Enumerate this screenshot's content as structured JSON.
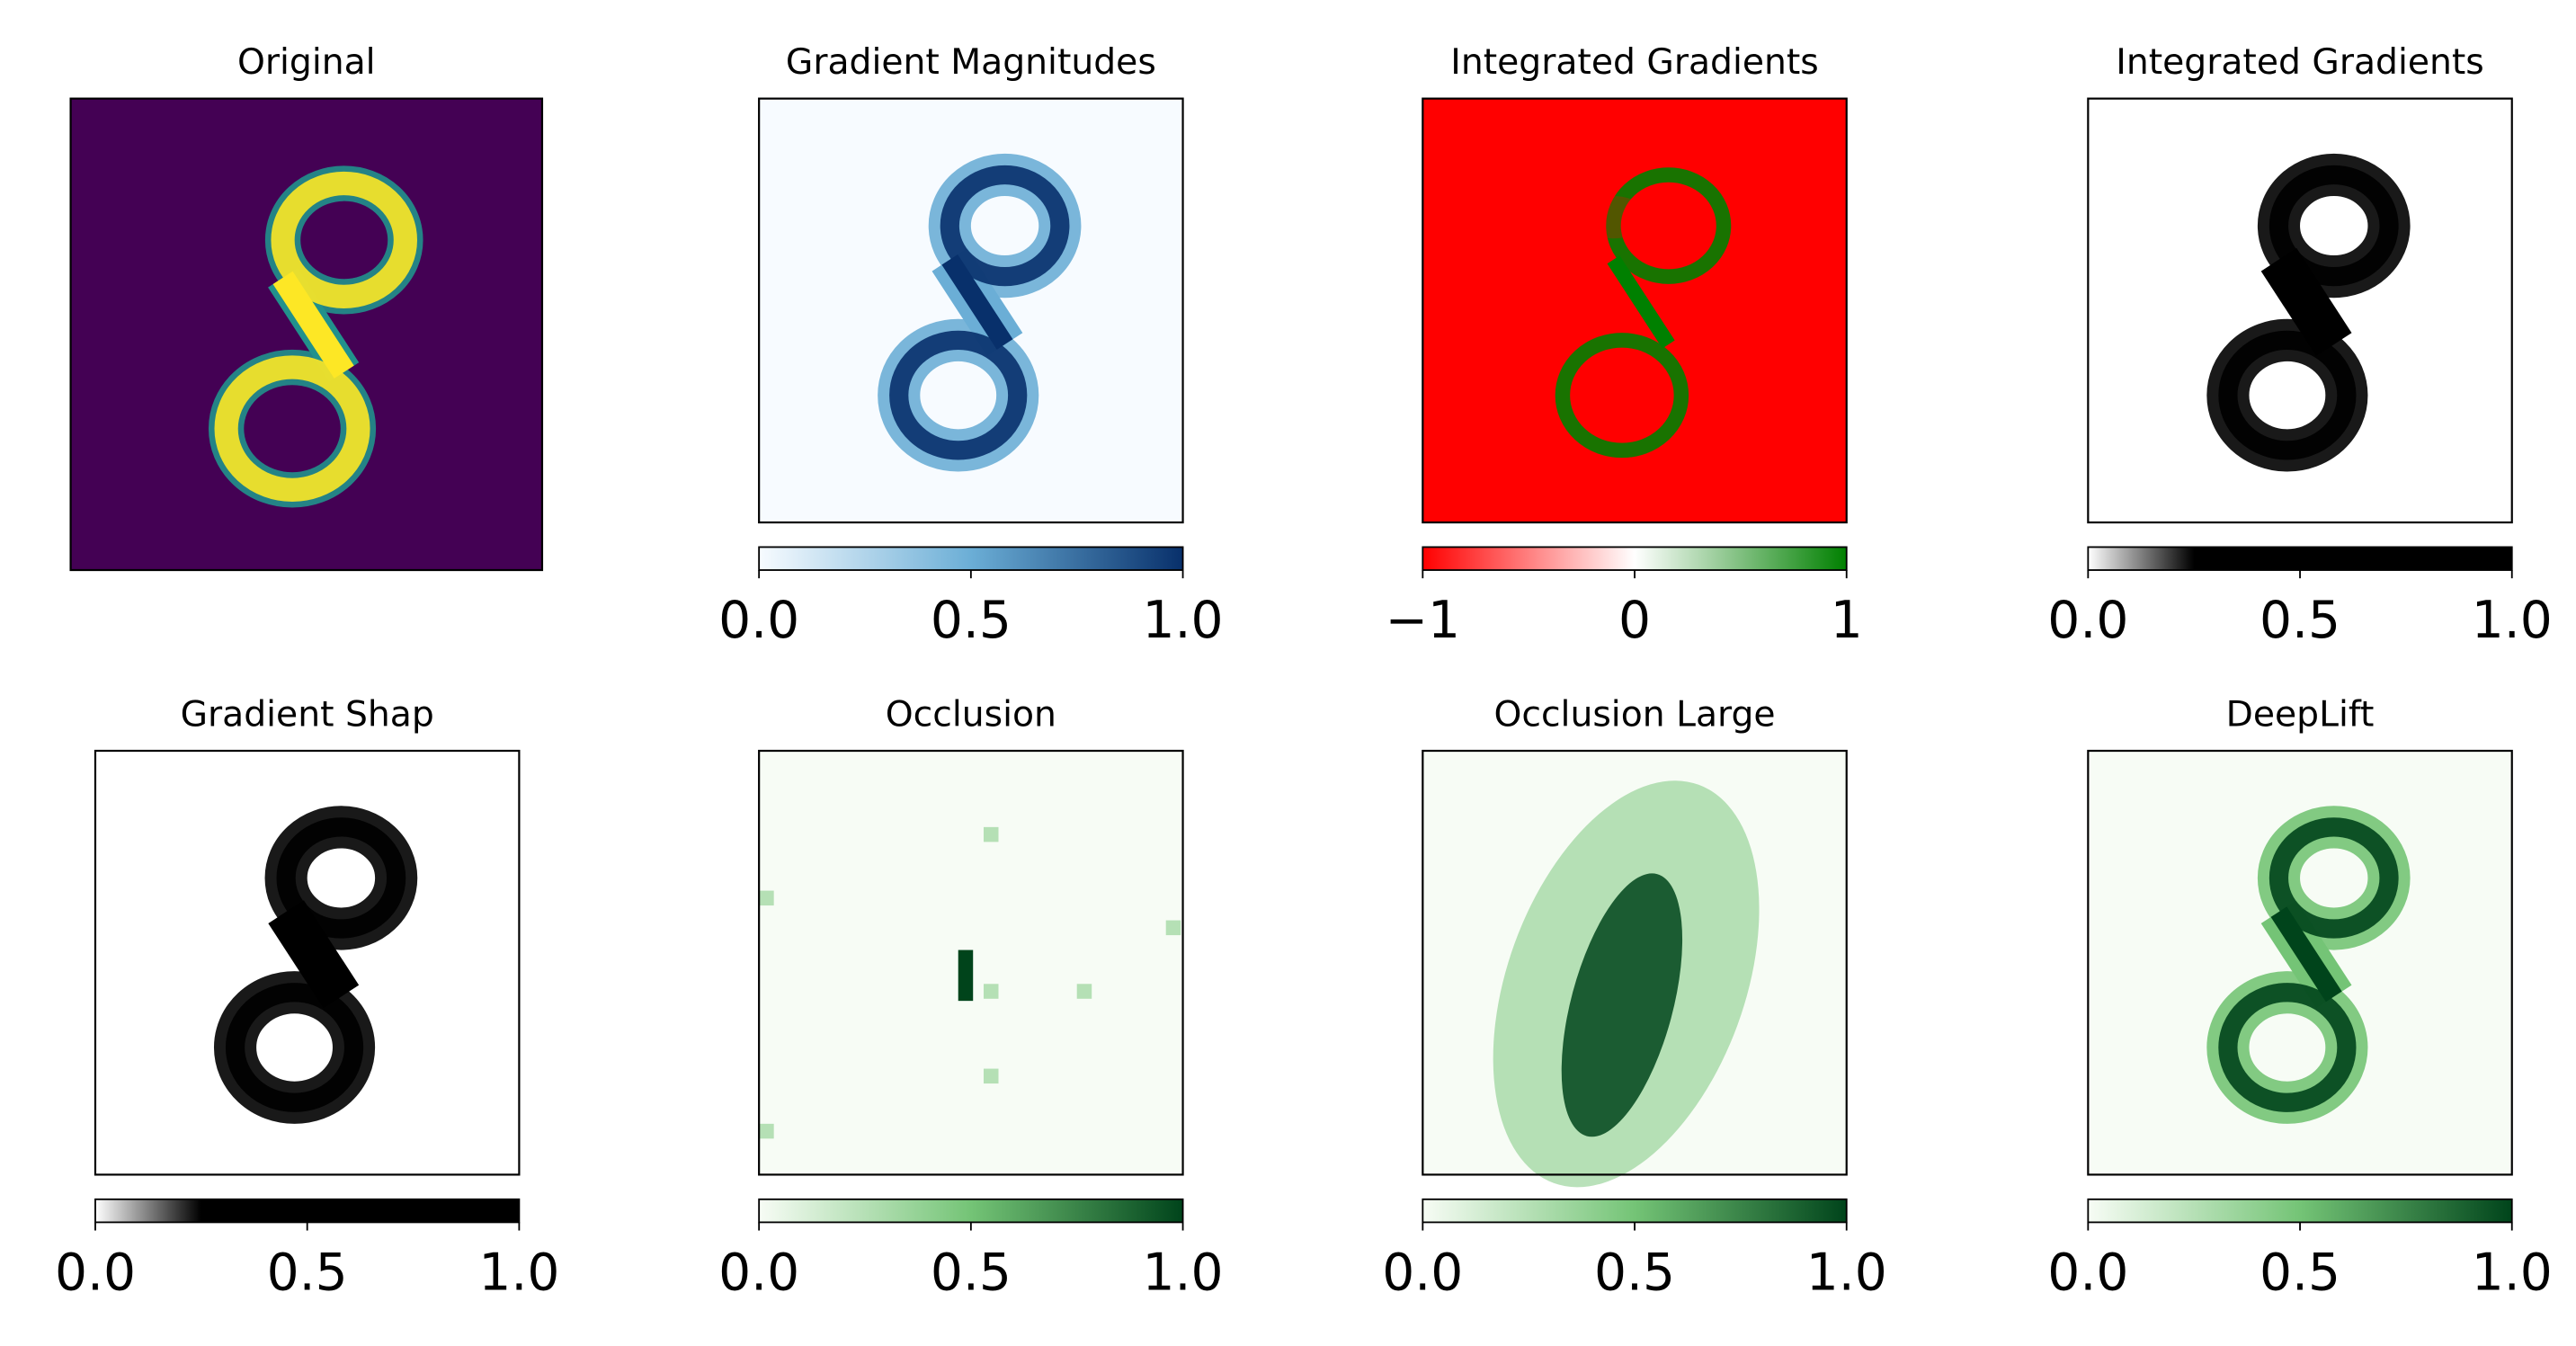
{
  "chart_data": [
    {
      "type": "heatmap",
      "title": "Original",
      "colors": [
        "#440154",
        "#21918c",
        "#fde725"
      ]
    },
    {
      "type": "heatmap",
      "title": "Gradient Magnitudes",
      "colors": [
        "#f7fbff",
        "#6baed6",
        "#08306b"
      ],
      "clim": [
        0,
        1
      ],
      "cticks": [
        {
          "value": 0,
          "label": "0.0"
        },
        {
          "value": 0.5,
          "label": "0.5"
        },
        {
          "value": 1,
          "label": "1.0"
        }
      ]
    },
    {
      "type": "heatmap",
      "title": "Integrated Gradients",
      "colors": [
        "#ff0000",
        "#ffffff",
        "#008000"
      ],
      "clim": [
        -1,
        1
      ],
      "cticks": [
        {
          "value": -1,
          "label": "−1"
        },
        0,
        1
      ]
    },
    {
      "type": "heatmap",
      "title": "Integrated Gradients",
      "colors": [
        "#ffffff",
        "#000000",
        "#000000"
      ],
      "clim": [
        0,
        1
      ],
      "cticks": [
        {
          "value": 0,
          "label": "0.0"
        },
        {
          "value": 0.5,
          "label": "0.5"
        },
        {
          "value": 1,
          "label": "1.0"
        }
      ]
    },
    {
      "type": "heatmap",
      "title": "Gradient Shap",
      "colors": [
        "#ffffff",
        "#000000",
        "#000000"
      ],
      "clim": [
        0,
        1
      ],
      "cticks": [
        {
          "value": 0,
          "label": "0.0"
        },
        {
          "value": 0.5,
          "label": "0.5"
        },
        {
          "value": 1,
          "label": "1.0"
        }
      ]
    },
    {
      "type": "heatmap",
      "title": "Occlusion",
      "colors": [
        "#f7fcf5",
        "#74c476",
        "#00441b"
      ],
      "clim": [
        0,
        1
      ],
      "cticks": [
        {
          "value": 0,
          "label": "0.0"
        },
        {
          "value": 0.5,
          "label": "0.5"
        },
        {
          "value": 1,
          "label": "1.0"
        }
      ]
    },
    {
      "type": "heatmap",
      "title": "Occlusion Large",
      "colors": [
        "#f7fcf5",
        "#74c476",
        "#00441b"
      ],
      "clim": [
        0,
        1
      ],
      "cticks": [
        {
          "value": 0,
          "label": "0.0"
        },
        {
          "value": 0.5,
          "label": "0.5"
        },
        {
          "value": 1,
          "label": "1.0"
        }
      ]
    },
    {
      "type": "heatmap",
      "title": "DeepLift",
      "colors": [
        "#f7fcf5",
        "#74c476",
        "#00441b"
      ],
      "clim": [
        0,
        1
      ],
      "cticks": [
        {
          "value": 0,
          "label": "0.0"
        },
        {
          "value": 0.5,
          "label": "0.5"
        },
        {
          "value": 1,
          "label": "1.0"
        }
      ]
    }
  ]
}
